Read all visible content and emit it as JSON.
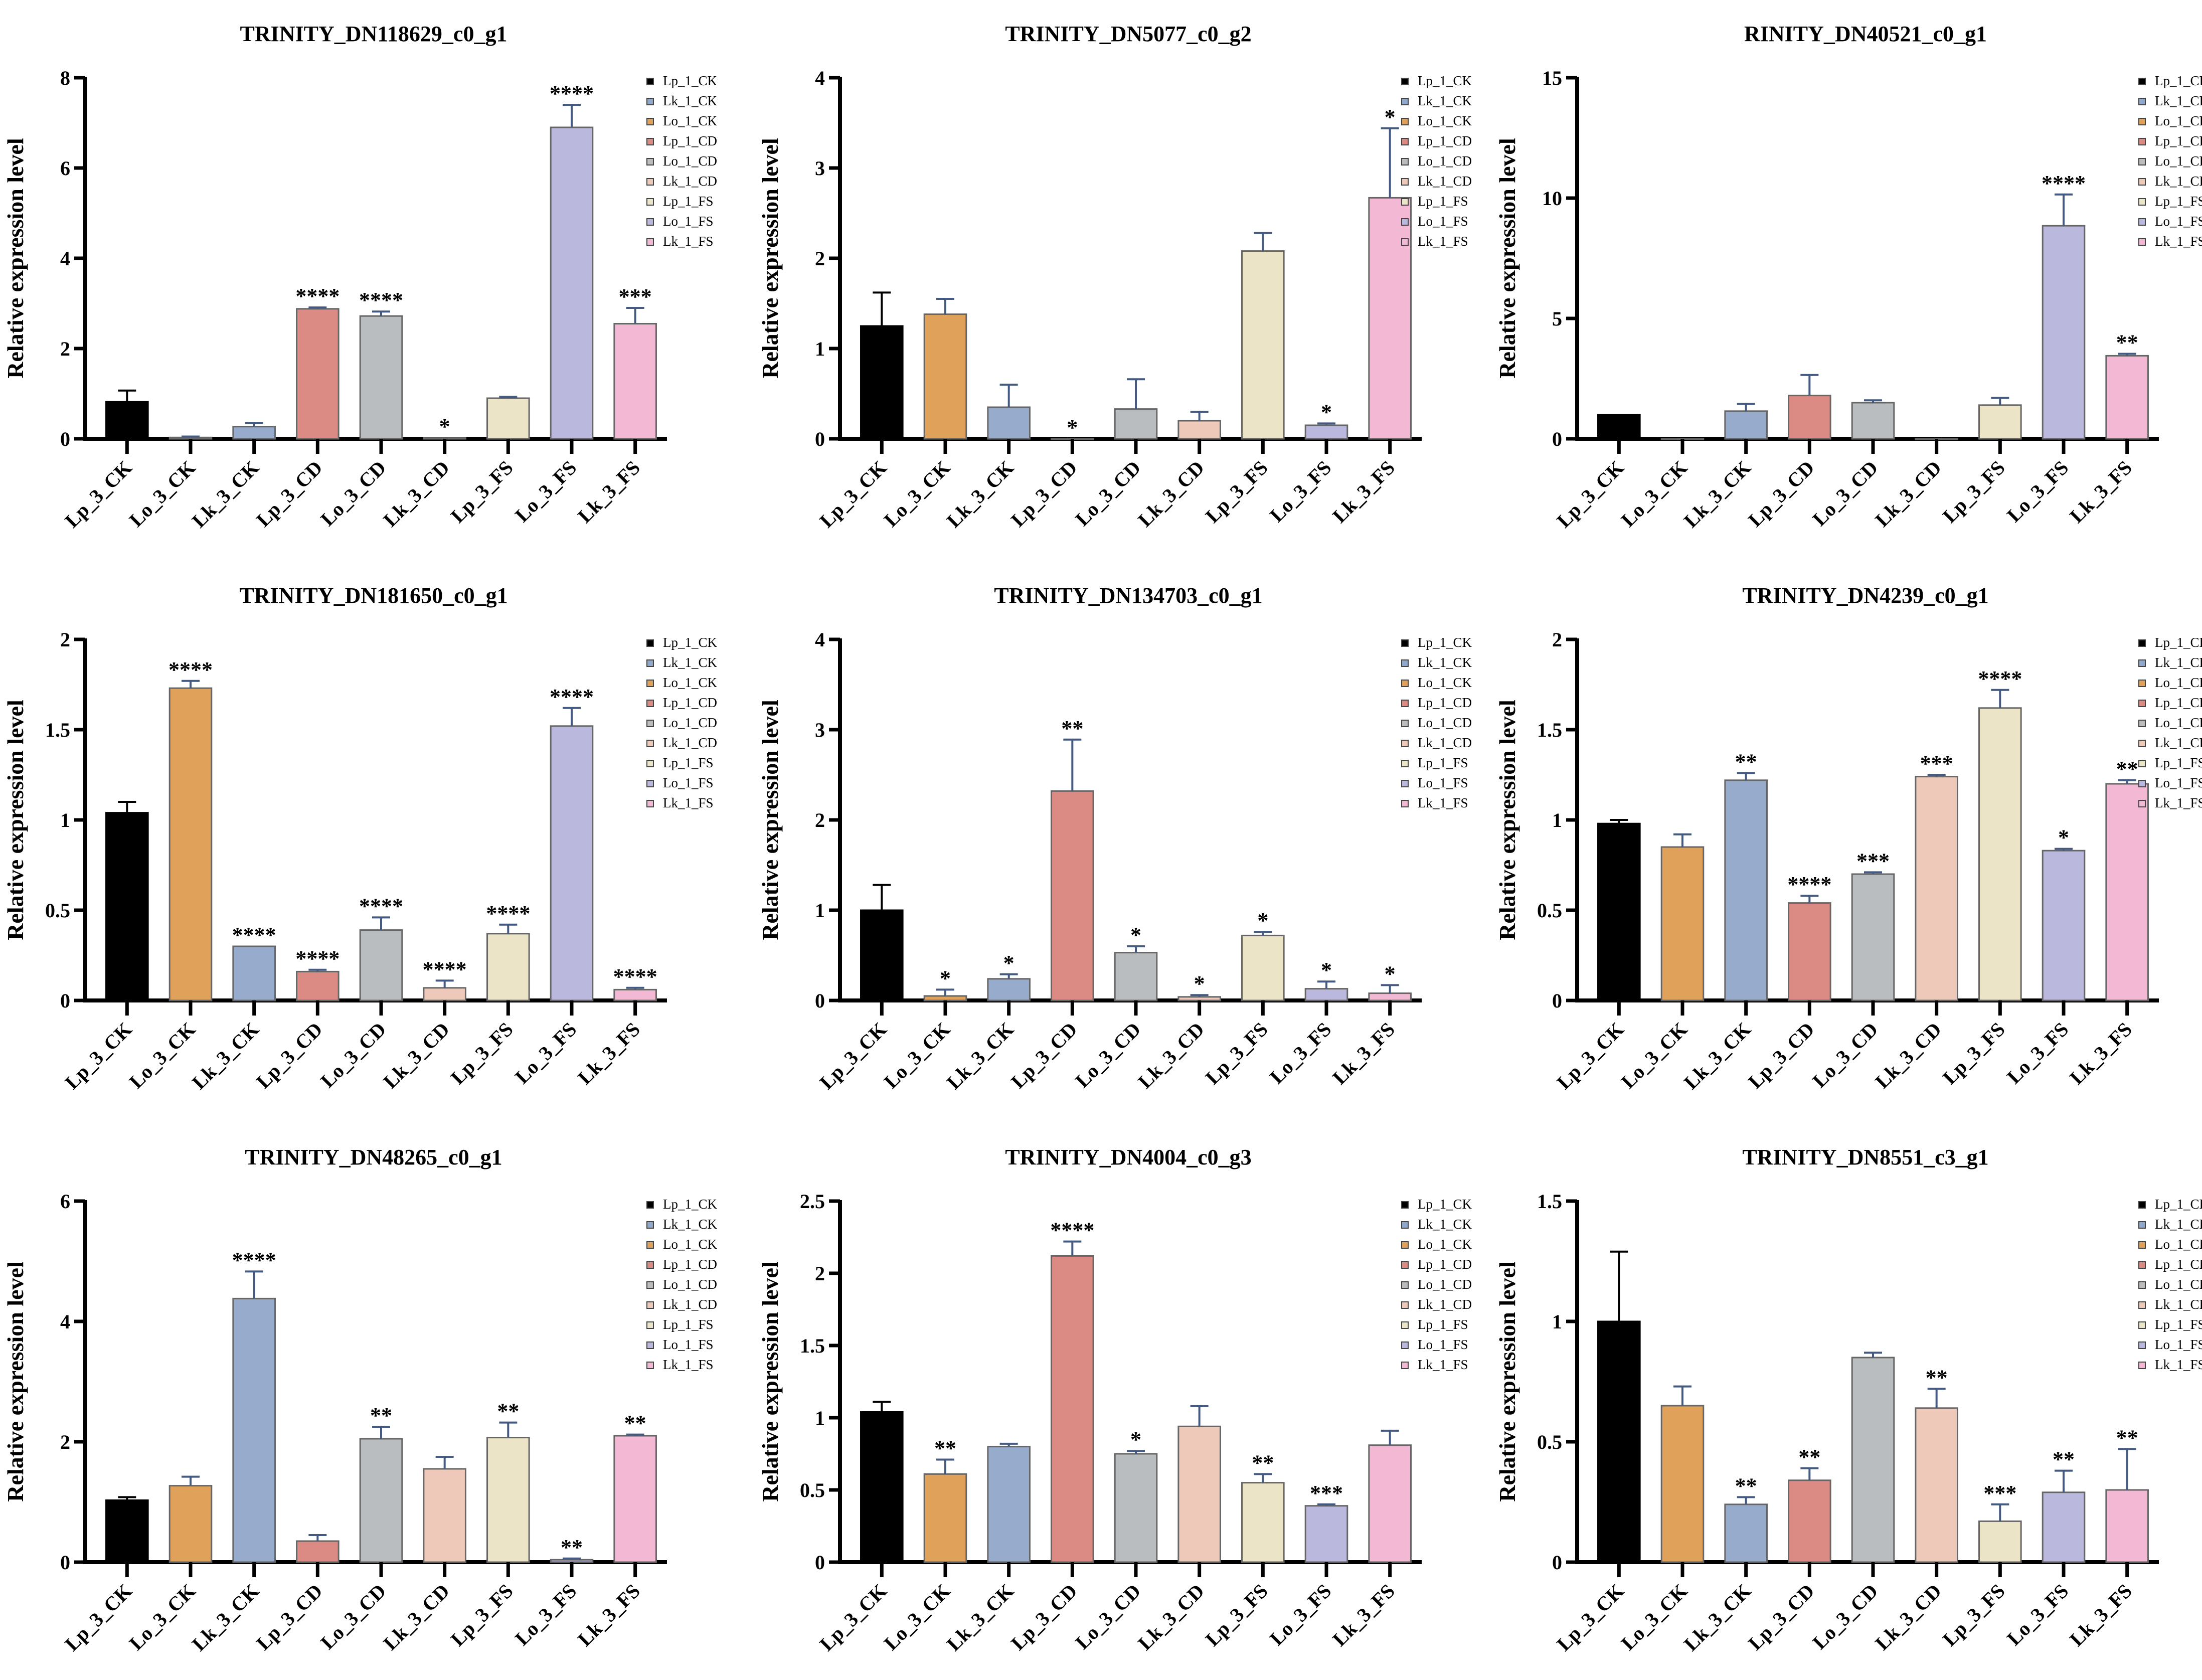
{
  "legend_labels": [
    "Lp_1_CK",
    "Lk_1_CK",
    "Lo_1_CK",
    "Lp_1_CD",
    "Lo_1_CD",
    "Lk_1_CD",
    "Lp_1_FS",
    "Lo_1_FS",
    "Lk_1_FS"
  ],
  "legend_colors": [
    "#000000",
    "#8fa8cc",
    "#e0a25a",
    "#db8a84",
    "#babdbf",
    "#eec8b8",
    "#ebe4c6",
    "#bab8dc",
    "#f2b8d4"
  ],
  "bar_colors": [
    "#000000",
    "#e0a25a",
    "#97abcd",
    "#db8a84",
    "#babdbf",
    "#eec8b8",
    "#ebe4c6",
    "#bab8dc",
    "#f2b8d4"
  ],
  "chart_data": [
    {
      "type": "bar",
      "title": "TRINITY_DN118629_c0_g1",
      "ylabel": "Relative expression level",
      "ylim": [
        0,
        8
      ],
      "yticks": [
        0,
        2,
        4,
        6,
        8
      ],
      "categories": [
        "Lp_3_CK",
        "Lo_3_CK",
        "Lk_3_CK",
        "Lp_3_CD",
        "Lo_3_CD",
        "Lk_3_CD",
        "Lp_3_FS",
        "Lo_3_FS",
        "Lk_3_FS"
      ],
      "values": [
        0.82,
        0.03,
        0.27,
        2.88,
        2.72,
        0.02,
        0.9,
        6.9,
        2.55
      ],
      "errors": [
        0.25,
        0.02,
        0.08,
        0.03,
        0.1,
        0,
        0.03,
        0.5,
        0.35
      ],
      "significance": [
        "",
        "",
        "",
        "****",
        "****",
        "*",
        "",
        "****",
        "***"
      ]
    },
    {
      "type": "bar",
      "title": "TRINITY_DN5077_c0_g2",
      "ylabel": "Relative expression level",
      "ylim": [
        0,
        4
      ],
      "yticks": [
        0,
        1,
        2,
        3,
        4
      ],
      "categories": [
        "Lp_3_CK",
        "Lo_3_CK",
        "Lk_3_CK",
        "Lp_3_CD",
        "Lo_3_CD",
        "Lk_3_CD",
        "Lp_3_FS",
        "Lo_3_FS",
        "Lk_3_FS"
      ],
      "values": [
        1.25,
        1.38,
        0.35,
        0,
        0.33,
        0.2,
        2.08,
        0.15,
        2.67
      ],
      "errors": [
        0.37,
        0.17,
        0.25,
        0,
        0.33,
        0.1,
        0.2,
        0.02,
        0.77
      ],
      "significance": [
        "",
        "",
        "",
        "*",
        "",
        "",
        "",
        "*",
        "*"
      ]
    },
    {
      "type": "bar",
      "title": "RINITY_DN40521_c0_g1",
      "ylabel": "Relative expression level",
      "ylim": [
        0,
        15
      ],
      "yticks": [
        0,
        5,
        10,
        15
      ],
      "categories": [
        "Lp_3_CK",
        "Lo_3_CK",
        "Lk_3_CK",
        "Lp_3_CD",
        "Lo_3_CD",
        "Lk_3_CD",
        "Lp_3_FS",
        "Lo_3_FS",
        "Lk_3_FS"
      ],
      "values": [
        1.0,
        0,
        1.15,
        1.8,
        1.5,
        0,
        1.4,
        8.85,
        3.45
      ],
      "errors": [
        0,
        0,
        0.3,
        0.85,
        0.1,
        0,
        0.3,
        1.3,
        0.08
      ],
      "significance": [
        "",
        "",
        "",
        "",
        "",
        "",
        "",
        "****",
        "**"
      ]
    },
    {
      "type": "bar",
      "title": "TRINITY_DN181650_c0_g1",
      "ylabel": "Relative expression level",
      "ylim": [
        0,
        2
      ],
      "yticks": [
        0,
        0.5,
        1,
        1.5,
        2
      ],
      "categories": [
        "Lp_3_CK",
        "Lo_3_CK",
        "Lk_3_CK",
        "Lp_3_CD",
        "Lo_3_CD",
        "Lk_3_CD",
        "Lp_3_FS",
        "Lo_3_FS",
        "Lk_3_FS"
      ],
      "values": [
        1.04,
        1.73,
        0.3,
        0.16,
        0.39,
        0.07,
        0.37,
        1.52,
        0.06
      ],
      "errors": [
        0.06,
        0.04,
        0,
        0.01,
        0.07,
        0.04,
        0.05,
        0.1,
        0.01
      ],
      "significance": [
        "",
        "****",
        "****",
        "****",
        "****",
        "****",
        "****",
        "****",
        "****"
      ]
    },
    {
      "type": "bar",
      "title": "TRINITY_DN134703_c0_g1",
      "ylabel": "Relative expression level",
      "ylim": [
        0,
        4
      ],
      "yticks": [
        0,
        1,
        2,
        3,
        4
      ],
      "categories": [
        "Lp_3_CK",
        "Lo_3_CK",
        "Lk_3_CK",
        "Lp_3_CD",
        "Lo_3_CD",
        "Lk_3_CD",
        "Lp_3_FS",
        "Lo_3_FS",
        "Lk_3_FS"
      ],
      "values": [
        1.0,
        0.05,
        0.24,
        2.32,
        0.53,
        0.04,
        0.72,
        0.13,
        0.08
      ],
      "errors": [
        0.28,
        0.07,
        0.05,
        0.57,
        0.07,
        0.02,
        0.04,
        0.08,
        0.09
      ],
      "significance": [
        "",
        "*",
        "*",
        "**",
        "*",
        "*",
        "*",
        "*",
        "*"
      ]
    },
    {
      "type": "bar",
      "title": "TRINITY_DN4239_c0_g1",
      "ylabel": "Relative expression level",
      "ylim": [
        0,
        2
      ],
      "yticks": [
        0,
        0.5,
        1,
        1.5,
        2
      ],
      "categories": [
        "Lp_3_CK",
        "Lo_3_CK",
        "Lk_3_CK",
        "Lp_3_CD",
        "Lo_3_CD",
        "Lk_3_CD",
        "Lp_3_FS",
        "Lo_3_FS",
        "Lk_3_FS"
      ],
      "values": [
        0.98,
        0.85,
        1.22,
        0.54,
        0.7,
        1.24,
        1.62,
        0.83,
        1.2
      ],
      "errors": [
        0.02,
        0.07,
        0.04,
        0.04,
        0.01,
        0.01,
        0.1,
        0.01,
        0.02
      ],
      "significance": [
        "",
        "",
        "**",
        "****",
        "***",
        "***",
        "****",
        "*",
        "**"
      ]
    },
    {
      "type": "bar",
      "title": "TRINITY_DN48265_c0_g1",
      "ylabel": "Relative expression level",
      "ylim": [
        0,
        6
      ],
      "yticks": [
        0,
        2,
        4,
        6
      ],
      "categories": [
        "Lp_3_CK",
        "Lo_3_CK",
        "Lk_3_CK",
        "Lp_3_CD",
        "Lo_3_CD",
        "Lk_3_CD",
        "Lp_3_FS",
        "Lo_3_FS",
        "Lk_3_FS"
      ],
      "values": [
        1.03,
        1.27,
        4.38,
        0.35,
        2.05,
        1.55,
        2.07,
        0.04,
        2.1
      ],
      "errors": [
        0.05,
        0.15,
        0.45,
        0.1,
        0.2,
        0.2,
        0.25,
        0.02,
        0.02
      ],
      "significance": [
        "",
        "",
        "****",
        "",
        "**",
        "",
        "**",
        "**",
        "**"
      ]
    },
    {
      "type": "bar",
      "title": "TRINITY_DN4004_c0_g3",
      "ylabel": "Relative expression level",
      "ylim": [
        0,
        2.5
      ],
      "yticks": [
        0,
        0.5,
        1,
        1.5,
        2,
        2.5
      ],
      "categories": [
        "Lp_3_CK",
        "Lo_3_CK",
        "Lk_3_CK",
        "Lp_3_CD",
        "Lo_3_CD",
        "Lk_3_CD",
        "Lp_3_FS",
        "Lo_3_FS",
        "Lk_3_FS"
      ],
      "values": [
        1.04,
        0.61,
        0.8,
        2.12,
        0.75,
        0.94,
        0.55,
        0.39,
        0.81
      ],
      "errors": [
        0.07,
        0.1,
        0.02,
        0.1,
        0.02,
        0.14,
        0.06,
        0.01,
        0.1
      ],
      "significance": [
        "",
        "**",
        "",
        "****",
        "*",
        "",
        "**",
        "***",
        ""
      ]
    },
    {
      "type": "bar",
      "title": "TRINITY_DN8551_c3_g1",
      "ylabel": "Relative expression level",
      "ylim": [
        0,
        1.5
      ],
      "yticks": [
        0,
        0.5,
        1,
        1.5
      ],
      "categories": [
        "Lp_3_CK",
        "Lo_3_CK",
        "Lk_3_CK",
        "Lp_3_CD",
        "Lo_3_CD",
        "Lk_3_CD",
        "Lp_3_FS",
        "Lo_3_FS",
        "Lk_3_FS"
      ],
      "values": [
        1.0,
        0.65,
        0.24,
        0.34,
        0.85,
        0.64,
        0.17,
        0.29,
        0.3
      ],
      "errors": [
        0.29,
        0.08,
        0.03,
        0.05,
        0.02,
        0.08,
        0.07,
        0.09,
        0.17
      ],
      "significance": [
        "",
        "",
        "**",
        "**",
        "",
        "**",
        "***",
        "**",
        "**"
      ]
    }
  ]
}
